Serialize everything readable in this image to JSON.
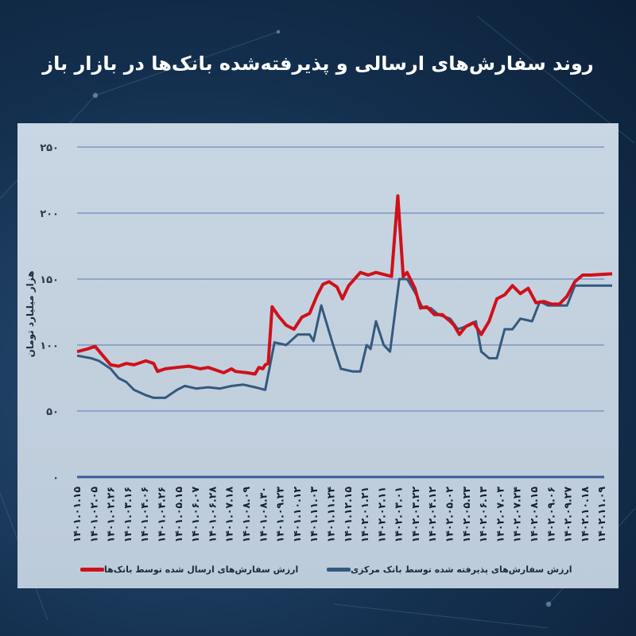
{
  "title": "روند سفارش‌های ارسالی و پذیرفته‌شده بانک‌ها در بازار باز",
  "chart_data": {
    "type": "line",
    "title": "روند سفارش‌های ارسالی و پذیرفته‌شده بانک‌ها در بازار باز",
    "ylabel": "هزار میلیارد تومان",
    "xlabel": "",
    "ylim": [
      0,
      250
    ],
    "yticks": [
      "۰",
      "۵۰",
      "۱۰۰",
      "۱۵۰",
      "۲۰۰",
      "۲۵۰"
    ],
    "ytick_values": [
      0,
      50,
      100,
      150,
      200,
      250
    ],
    "grid": true,
    "legend_position": "bottom",
    "categories": [
      "۱۴۰۱.۰۱.۱۵",
      "۱۴۰۱.۰۲.۰۵",
      "۱۴۰۱.۰۲.۲۶",
      "۱۴۰۱.۰۳.۱۶",
      "۱۴۰۱.۰۴.۰۶",
      "۱۴۰۱.۰۴.۲۶",
      "۱۴۰۱.۰۵.۱۵",
      "۱۴۰۱.۰۶.۰۷",
      "۱۴۰۱.۰۶.۲۸",
      "۱۴۰۱.۰۷.۱۸",
      "۱۴۰۱.۰۸.۰۹",
      "۱۴۰۱.۰۸.۳۰",
      "۱۴۰۱.۰۹.۲۳",
      "۱۴۰۱.۱۰.۱۲",
      "۱۴۰۱.۱۱.۰۳",
      "۱۴۰۱.۱۱.۲۴",
      "۱۴۰۱.۱۲.۱۵",
      "۱۴۰۲.۰۱.۲۱",
      "۱۴۰۲.۰۲.۱۱",
      "۱۴۰۲.۰۳.۰۱",
      "۱۴۰۲.۰۳.۲۲",
      "۱۴۰۲.۰۴.۱۲",
      "۱۴۰۲.۰۵.۰۲",
      "۱۴۰۲.۰۵.۲۳",
      "۱۴۰۲.۰۶.۱۳",
      "۱۴۰۲.۰۷.۰۳",
      "۱۴۰۲.۰۷.۲۴",
      "۱۴۰۲.۰۸.۱۵",
      "۱۴۰۲.۰۹.۰۶",
      "۱۴۰۲.۰۹.۲۷",
      "۱۴۰۲.۱۰.۱۸",
      "۱۴۰۲.۱۱.۰۹"
    ],
    "x_range": [
      0,
      31.6
    ],
    "series": [
      {
        "name": "ارزش سفارش‌های ارسال شده توسط بانک‌ها",
        "color": "#d0101a",
        "points": [
          [
            0,
            95
          ],
          [
            0.6,
            97
          ],
          [
            1.06,
            99
          ],
          [
            1.52,
            92
          ],
          [
            1.98,
            85
          ],
          [
            2.44,
            84
          ],
          [
            2.9,
            86
          ],
          [
            3.36,
            85
          ],
          [
            4.06,
            88
          ],
          [
            4.52,
            86
          ],
          [
            4.75,
            80
          ],
          [
            5.21,
            82
          ],
          [
            5.9,
            83
          ],
          [
            6.59,
            84
          ],
          [
            7.28,
            82
          ],
          [
            7.74,
            83
          ],
          [
            8.2,
            81
          ],
          [
            8.66,
            79
          ],
          [
            9.12,
            82
          ],
          [
            9.35,
            80
          ],
          [
            10.04,
            79
          ],
          [
            10.51,
            78
          ],
          [
            10.74,
            83
          ],
          [
            10.97,
            82
          ],
          [
            11.11,
            85
          ],
          [
            11.29,
            86
          ],
          [
            11.52,
            129
          ],
          [
            11.89,
            122
          ],
          [
            12.35,
            115
          ],
          [
            12.81,
            112
          ],
          [
            13.27,
            121
          ],
          [
            13.73,
            124
          ],
          [
            13.96,
            131
          ],
          [
            14.19,
            138
          ],
          [
            14.52,
            146
          ],
          [
            14.88,
            148
          ],
          [
            15.35,
            144
          ],
          [
            15.67,
            135
          ],
          [
            16.04,
            145
          ],
          [
            16.73,
            155
          ],
          [
            17.19,
            153
          ],
          [
            17.65,
            155
          ],
          [
            18.57,
            152
          ],
          [
            18.94,
            213
          ],
          [
            19.26,
            152
          ],
          [
            19.49,
            155
          ],
          [
            19.95,
            143
          ],
          [
            20.28,
            128
          ],
          [
            20.65,
            129
          ],
          [
            21.11,
            123
          ],
          [
            21.57,
            123
          ],
          [
            22.03,
            118
          ],
          [
            22.26,
            115
          ],
          [
            22.58,
            108
          ],
          [
            22.95,
            114
          ],
          [
            23.41,
            117
          ],
          [
            23.87,
            108
          ],
          [
            24.33,
            118
          ],
          [
            24.79,
            135
          ],
          [
            25.25,
            138
          ],
          [
            25.71,
            145
          ],
          [
            26.18,
            139
          ],
          [
            26.64,
            143
          ],
          [
            27.1,
            132
          ],
          [
            27.56,
            133
          ],
          [
            28.02,
            131
          ],
          [
            28.48,
            131
          ],
          [
            28.94,
            137
          ],
          [
            29.4,
            148
          ],
          [
            29.86,
            153
          ],
          [
            30.32,
            153
          ],
          [
            31.6,
            154
          ]
        ]
      },
      {
        "name": "ارزش سفارش‌های پذیرفته شده توسط بانک مرکزی",
        "color": "#34597e",
        "points": [
          [
            0,
            92
          ],
          [
            0.83,
            90
          ],
          [
            1.29,
            88
          ],
          [
            1.98,
            82
          ],
          [
            2.44,
            75
          ],
          [
            2.9,
            72
          ],
          [
            3.36,
            66
          ],
          [
            4.06,
            62
          ],
          [
            4.52,
            60
          ],
          [
            5.21,
            60
          ],
          [
            5.9,
            66
          ],
          [
            6.36,
            69
          ],
          [
            7.05,
            67
          ],
          [
            7.74,
            68
          ],
          [
            8.43,
            67
          ],
          [
            9.12,
            69
          ],
          [
            9.82,
            70
          ],
          [
            10.51,
            68
          ],
          [
            11.11,
            66
          ],
          [
            11.66,
            102
          ],
          [
            12.35,
            100
          ],
          [
            13.04,
            108
          ],
          [
            13.73,
            108
          ],
          [
            13.96,
            103
          ],
          [
            14.42,
            130
          ],
          [
            15.12,
            100
          ],
          [
            15.58,
            82
          ],
          [
            16.27,
            80
          ],
          [
            16.73,
            80
          ],
          [
            17.1,
            100
          ],
          [
            17.33,
            97
          ],
          [
            17.65,
            118
          ],
          [
            18.11,
            100
          ],
          [
            18.48,
            95
          ],
          [
            19.03,
            150
          ],
          [
            19.49,
            150
          ],
          [
            19.95,
            140
          ],
          [
            20.41,
            128
          ],
          [
            20.88,
            128
          ],
          [
            21.34,
            123
          ],
          [
            22.03,
            120
          ],
          [
            22.49,
            112
          ],
          [
            23.18,
            115
          ],
          [
            23.55,
            118
          ],
          [
            23.87,
            95
          ],
          [
            24.33,
            90
          ],
          [
            24.79,
            90
          ],
          [
            25.25,
            112
          ],
          [
            25.71,
            112
          ],
          [
            26.18,
            120
          ],
          [
            26.87,
            118
          ],
          [
            27.33,
            133
          ],
          [
            27.79,
            130
          ],
          [
            28.94,
            130
          ],
          [
            29.4,
            145
          ],
          [
            31.6,
            145
          ]
        ]
      }
    ]
  }
}
